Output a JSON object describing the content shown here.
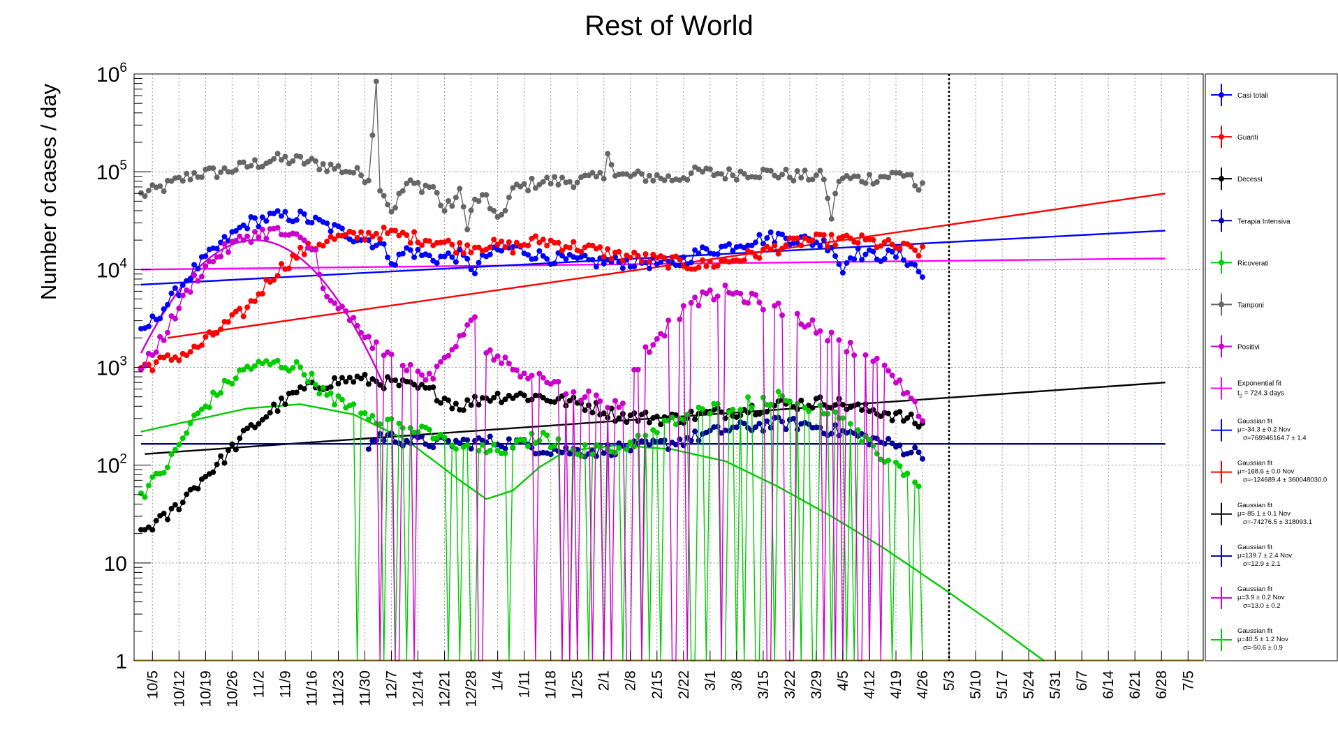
{
  "chart_data": {
    "type": "line",
    "title": "Rest of World",
    "xlabel": "",
    "ylabel": "Number of cases / day",
    "yscale": "log",
    "ylim": [
      1,
      1000000
    ],
    "y_ticks": [
      {
        "value": 1,
        "base": "1",
        "exp": ""
      },
      {
        "value": 10,
        "base": "10",
        "exp": ""
      },
      {
        "value": 100,
        "base": "10",
        "exp": "2"
      },
      {
        "value": 1000,
        "base": "10",
        "exp": "3"
      },
      {
        "value": 10000,
        "base": "10",
        "exp": "4"
      },
      {
        "value": 100000,
        "base": "10",
        "exp": "5"
      },
      {
        "value": 1000000,
        "base": "10",
        "exp": "6"
      }
    ],
    "x_tick_labels": [
      "10/5",
      "10/12",
      "10/19",
      "10/26",
      "11/2",
      "11/9",
      "11/16",
      "11/23",
      "11/30",
      "12/7",
      "12/14",
      "12/21",
      "12/28",
      "1/4",
      "1/11",
      "1/18",
      "1/25",
      "2/1",
      "2/8",
      "2/15",
      "2/22",
      "3/1",
      "3/8",
      "3/15",
      "3/22",
      "3/29",
      "4/5",
      "4/12",
      "4/19",
      "4/26",
      "5/3",
      "5/10",
      "5/17",
      "5/24",
      "5/31",
      "6/7",
      "6/14",
      "6/21",
      "6/28",
      "7/5"
    ],
    "grid": true,
    "legend_position": "right",
    "legend": [
      {
        "label": "Casi totali",
        "color": "#0000ff"
      },
      {
        "label": "Guariti",
        "color": "#ff0000"
      },
      {
        "label": "Decessi",
        "color": "#000000"
      },
      {
        "label": "Terapia Intensiva",
        "color": "#000099"
      },
      {
        "label": "Ricoverati",
        "color": "#00cc00"
      },
      {
        "label": "Tamponi",
        "color": "#666666"
      },
      {
        "label": "Positivi",
        "color": "#cc00cc"
      },
      {
        "label": "Exponential fit",
        "line2": "t",
        "line2_sub": "2",
        "line2_rest": " = 724.3 days",
        "color": "#ff00ff"
      },
      {
        "label": "Gaussian fit",
        "line2": "μ=-34.3 ± 0.2 Nov",
        "line3": "σ=768946164.7 ± 1.4",
        "color": "#0000ff"
      },
      {
        "label": "Gaussian fit",
        "line2": "μ=-168.6 ± 0.0 Nov",
        "line3": "σ=-124689.4 ± 360048030.0",
        "color": "#ff0000"
      },
      {
        "label": "Gaussian fit",
        "line2": "μ=-85.1 ± 0.1 Nov",
        "line3": "σ=-74276.5 ± 318093.1",
        "color": "#000000"
      },
      {
        "label": "Gaussian fit",
        "line2": "μ=139.7 ± 2.4 Nov",
        "line3": "σ=12.9 ± 2.1",
        "color": "#000099"
      },
      {
        "label": "Gaussian fit",
        "line2": "μ=3.9 ± 0.2 Nov",
        "line3": "σ=13.0 ± 0.2",
        "color": "#cc00cc"
      },
      {
        "label": "Gaussian fit",
        "line2": "μ=40.5 ± 1.2 Nov",
        "line3": "σ=-50.6 ± 0.9",
        "color": "#00cc00"
      }
    ],
    "current_day_marker": "5/3",
    "series": [
      {
        "name": "Tamponi",
        "color": "#666666",
        "keypoints": [
          [
            0,
            58000
          ],
          [
            6,
            70000
          ],
          [
            14,
            95000
          ],
          [
            21,
            100000
          ],
          [
            28,
            115000
          ],
          [
            35,
            135000
          ],
          [
            42,
            130000
          ],
          [
            49,
            115000
          ],
          [
            56,
            100000
          ],
          [
            60,
            88000
          ],
          [
            62,
            800000
          ],
          [
            63,
            75000
          ],
          [
            66,
            40000
          ],
          [
            70,
            75000
          ],
          [
            77,
            70000
          ],
          [
            80,
            40000
          ],
          [
            84,
            60000
          ],
          [
            86,
            30000
          ],
          [
            88,
            50000
          ],
          [
            91,
            55000
          ],
          [
            94,
            30000
          ],
          [
            98,
            65000
          ],
          [
            105,
            80000
          ],
          [
            112,
            80000
          ],
          [
            119,
            85000
          ],
          [
            122,
            90000
          ],
          [
            123,
            180000
          ],
          [
            125,
            90000
          ],
          [
            133,
            90000
          ],
          [
            140,
            85000
          ],
          [
            147,
            100000
          ],
          [
            154,
            95000
          ],
          [
            161,
            100000
          ],
          [
            168,
            95000
          ],
          [
            175,
            90000
          ],
          [
            180,
            90000
          ],
          [
            181,
            50000
          ],
          [
            182,
            35000
          ],
          [
            184,
            85000
          ],
          [
            190,
            85000
          ],
          [
            196,
            90000
          ],
          [
            200,
            95000
          ],
          [
            203,
            95000
          ],
          [
            204,
            70000
          ],
          [
            206,
            68000
          ]
        ]
      },
      {
        "name": "Casi totali",
        "color": "#0000ff",
        "keypoints": [
          [
            0,
            2200
          ],
          [
            7,
            4500
          ],
          [
            14,
            10000
          ],
          [
            21,
            18000
          ],
          [
            28,
            30000
          ],
          [
            35,
            35000
          ],
          [
            42,
            35000
          ],
          [
            49,
            28000
          ],
          [
            56,
            22000
          ],
          [
            60,
            20000
          ],
          [
            63,
            18000
          ],
          [
            67,
            12000
          ],
          [
            70,
            16000
          ],
          [
            77,
            13000
          ],
          [
            84,
            14000
          ],
          [
            88,
            10000
          ],
          [
            91,
            14000
          ],
          [
            98,
            17000
          ],
          [
            105,
            14000
          ],
          [
            112,
            12500
          ],
          [
            119,
            12000
          ],
          [
            126,
            12000
          ],
          [
            133,
            12000
          ],
          [
            140,
            11000
          ],
          [
            147,
            15000
          ],
          [
            154,
            17000
          ],
          [
            161,
            20000
          ],
          [
            168,
            22000
          ],
          [
            175,
            20000
          ],
          [
            182,
            18000
          ],
          [
            185,
            9500
          ],
          [
            187,
            15000
          ],
          [
            192,
            14000
          ],
          [
            196,
            14000
          ],
          [
            200,
            14000
          ],
          [
            203,
            12000
          ],
          [
            206,
            8500
          ]
        ]
      },
      {
        "name": "Guariti",
        "color": "#ff0000",
        "keypoints": [
          [
            0,
            1000
          ],
          [
            7,
            1200
          ],
          [
            14,
            1500
          ],
          [
            21,
            2500
          ],
          [
            28,
            4000
          ],
          [
            35,
            9000
          ],
          [
            42,
            15000
          ],
          [
            49,
            20000
          ],
          [
            56,
            22000
          ],
          [
            63,
            24000
          ],
          [
            70,
            22000
          ],
          [
            77,
            20000
          ],
          [
            84,
            17000
          ],
          [
            91,
            18000
          ],
          [
            98,
            17000
          ],
          [
            105,
            20000
          ],
          [
            112,
            18000
          ],
          [
            119,
            16000
          ],
          [
            126,
            14000
          ],
          [
            133,
            13000
          ],
          [
            140,
            12000
          ],
          [
            147,
            11000
          ],
          [
            154,
            12000
          ],
          [
            161,
            14000
          ],
          [
            168,
            17000
          ],
          [
            175,
            20000
          ],
          [
            182,
            20000
          ],
          [
            189,
            20000
          ],
          [
            196,
            18000
          ],
          [
            203,
            16000
          ],
          [
            206,
            15000
          ]
        ]
      },
      {
        "name": "Decessi",
        "color": "#000000",
        "keypoints": [
          [
            0,
            21
          ],
          [
            7,
            30
          ],
          [
            14,
            60
          ],
          [
            21,
            110
          ],
          [
            28,
            220
          ],
          [
            35,
            380
          ],
          [
            42,
            580
          ],
          [
            49,
            700
          ],
          [
            56,
            760
          ],
          [
            63,
            720
          ],
          [
            70,
            650
          ],
          [
            77,
            560
          ],
          [
            84,
            400
          ],
          [
            91,
            500
          ],
          [
            98,
            520
          ],
          [
            105,
            500
          ],
          [
            112,
            450
          ],
          [
            119,
            400
          ],
          [
            126,
            320
          ],
          [
            133,
            310
          ],
          [
            140,
            300
          ],
          [
            147,
            330
          ],
          [
            154,
            350
          ],
          [
            161,
            380
          ],
          [
            168,
            420
          ],
          [
            175,
            430
          ],
          [
            182,
            450
          ],
          [
            189,
            380
          ],
          [
            196,
            350
          ],
          [
            203,
            290
          ],
          [
            206,
            250
          ]
        ]
      },
      {
        "name": "Terapia Intensiva",
        "color": "#000099",
        "keypoints": [
          [
            60,
            160
          ],
          [
            63,
            200
          ],
          [
            70,
            180
          ],
          [
            77,
            170
          ],
          [
            84,
            170
          ],
          [
            91,
            175
          ],
          [
            98,
            170
          ],
          [
            105,
            150
          ],
          [
            112,
            140
          ],
          [
            119,
            140
          ],
          [
            126,
            150
          ],
          [
            133,
            155
          ],
          [
            140,
            170
          ],
          [
            147,
            200
          ],
          [
            154,
            230
          ],
          [
            161,
            250
          ],
          [
            168,
            270
          ],
          [
            175,
            260
          ],
          [
            182,
            230
          ],
          [
            189,
            200
          ],
          [
            196,
            170
          ],
          [
            203,
            140
          ],
          [
            206,
            135
          ]
        ]
      },
      {
        "name": "Ricoverati",
        "color": "#00cc00",
        "keypoints": [
          [
            0,
            50
          ],
          [
            7,
            100
          ],
          [
            14,
            300
          ],
          [
            21,
            600
          ],
          [
            28,
            1000
          ],
          [
            35,
            1100
          ],
          [
            42,
            1000
          ],
          [
            46,
            700
          ],
          [
            49,
            500
          ],
          [
            56,
            400
          ],
          [
            63,
            300
          ],
          [
            70,
            250
          ],
          [
            77,
            200
          ],
          [
            84,
            150
          ],
          [
            91,
            140
          ],
          [
            98,
            150
          ],
          [
            105,
            200
          ],
          [
            112,
            150
          ],
          [
            119,
            140
          ],
          [
            126,
            150
          ],
          [
            133,
            200
          ],
          [
            140,
            280
          ],
          [
            147,
            350
          ],
          [
            154,
            400
          ],
          [
            161,
            450
          ],
          [
            168,
            500
          ],
          [
            175,
            400
          ],
          [
            182,
            350
          ],
          [
            189,
            200
          ],
          [
            196,
            120
          ],
          [
            203,
            80
          ],
          [
            206,
            50
          ]
        ]
      },
      {
        "name": "Positivi",
        "color": "#cc00cc",
        "keypoints": [
          [
            0,
            900
          ],
          [
            7,
            2500
          ],
          [
            14,
            8000
          ],
          [
            21,
            15000
          ],
          [
            28,
            22000
          ],
          [
            35,
            25000
          ],
          [
            42,
            20000
          ],
          [
            46,
            15000
          ],
          [
            49,
            5000
          ],
          [
            56,
            3000
          ],
          [
            63,
            1500
          ],
          [
            70,
            1000
          ],
          [
            77,
            800
          ],
          [
            84,
            2000
          ],
          [
            88,
            3000
          ],
          [
            91,
            1500
          ],
          [
            98,
            1000
          ],
          [
            105,
            800
          ],
          [
            112,
            600
          ],
          [
            119,
            500
          ],
          [
            126,
            400
          ],
          [
            133,
            1500
          ],
          [
            140,
            3000
          ],
          [
            147,
            5000
          ],
          [
            154,
            6000
          ],
          [
            161,
            5000
          ],
          [
            168,
            4000
          ],
          [
            175,
            3000
          ],
          [
            182,
            2000
          ],
          [
            189,
            1500
          ],
          [
            196,
            1000
          ],
          [
            203,
            500
          ],
          [
            206,
            300
          ]
        ]
      }
    ],
    "fits": [
      {
        "name": "Exponential fit",
        "color": "#ff00ff",
        "x": [
          0,
          270
        ],
        "y": [
          10000,
          13000
        ]
      },
      {
        "name": "Gaussian fit",
        "color": "#0000ff",
        "x": [
          0,
          270
        ],
        "y": [
          7000,
          25000
        ]
      },
      {
        "name": "Gaussian fit",
        "color": "#ff0000",
        "x": [
          7,
          270
        ],
        "y": [
          2000,
          60000
        ]
      },
      {
        "name": "Gaussian fit",
        "color": "#000000",
        "x": [
          1,
          270
        ],
        "y": [
          130,
          700
        ]
      },
      {
        "name": "Gaussian fit",
        "color": "#cc00cc",
        "x": [
          0,
          64
        ],
        "mu": 30,
        "sigma": 13.0,
        "peak": 20000
      },
      {
        "name": "Gaussian fit",
        "color": "#00cc00",
        "x": [
          0,
          270
        ],
        "curve": [
          [
            0,
            220
          ],
          [
            28,
            380
          ],
          [
            42,
            420
          ],
          [
            56,
            330
          ],
          [
            70,
            180
          ],
          [
            84,
            70
          ],
          [
            91,
            45
          ],
          [
            98,
            55
          ],
          [
            105,
            95
          ],
          [
            112,
            140
          ],
          [
            126,
            160
          ],
          [
            140,
            145
          ],
          [
            154,
            110
          ],
          [
            168,
            60
          ],
          [
            182,
            30
          ],
          [
            196,
            14
          ],
          [
            210,
            6
          ],
          [
            224,
            2.5
          ],
          [
            238,
            1
          ]
        ]
      },
      {
        "name": "Gaussian fit",
        "color": "#000099",
        "x": [
          0,
          270
        ],
        "y": [
          165,
          165
        ]
      }
    ]
  }
}
